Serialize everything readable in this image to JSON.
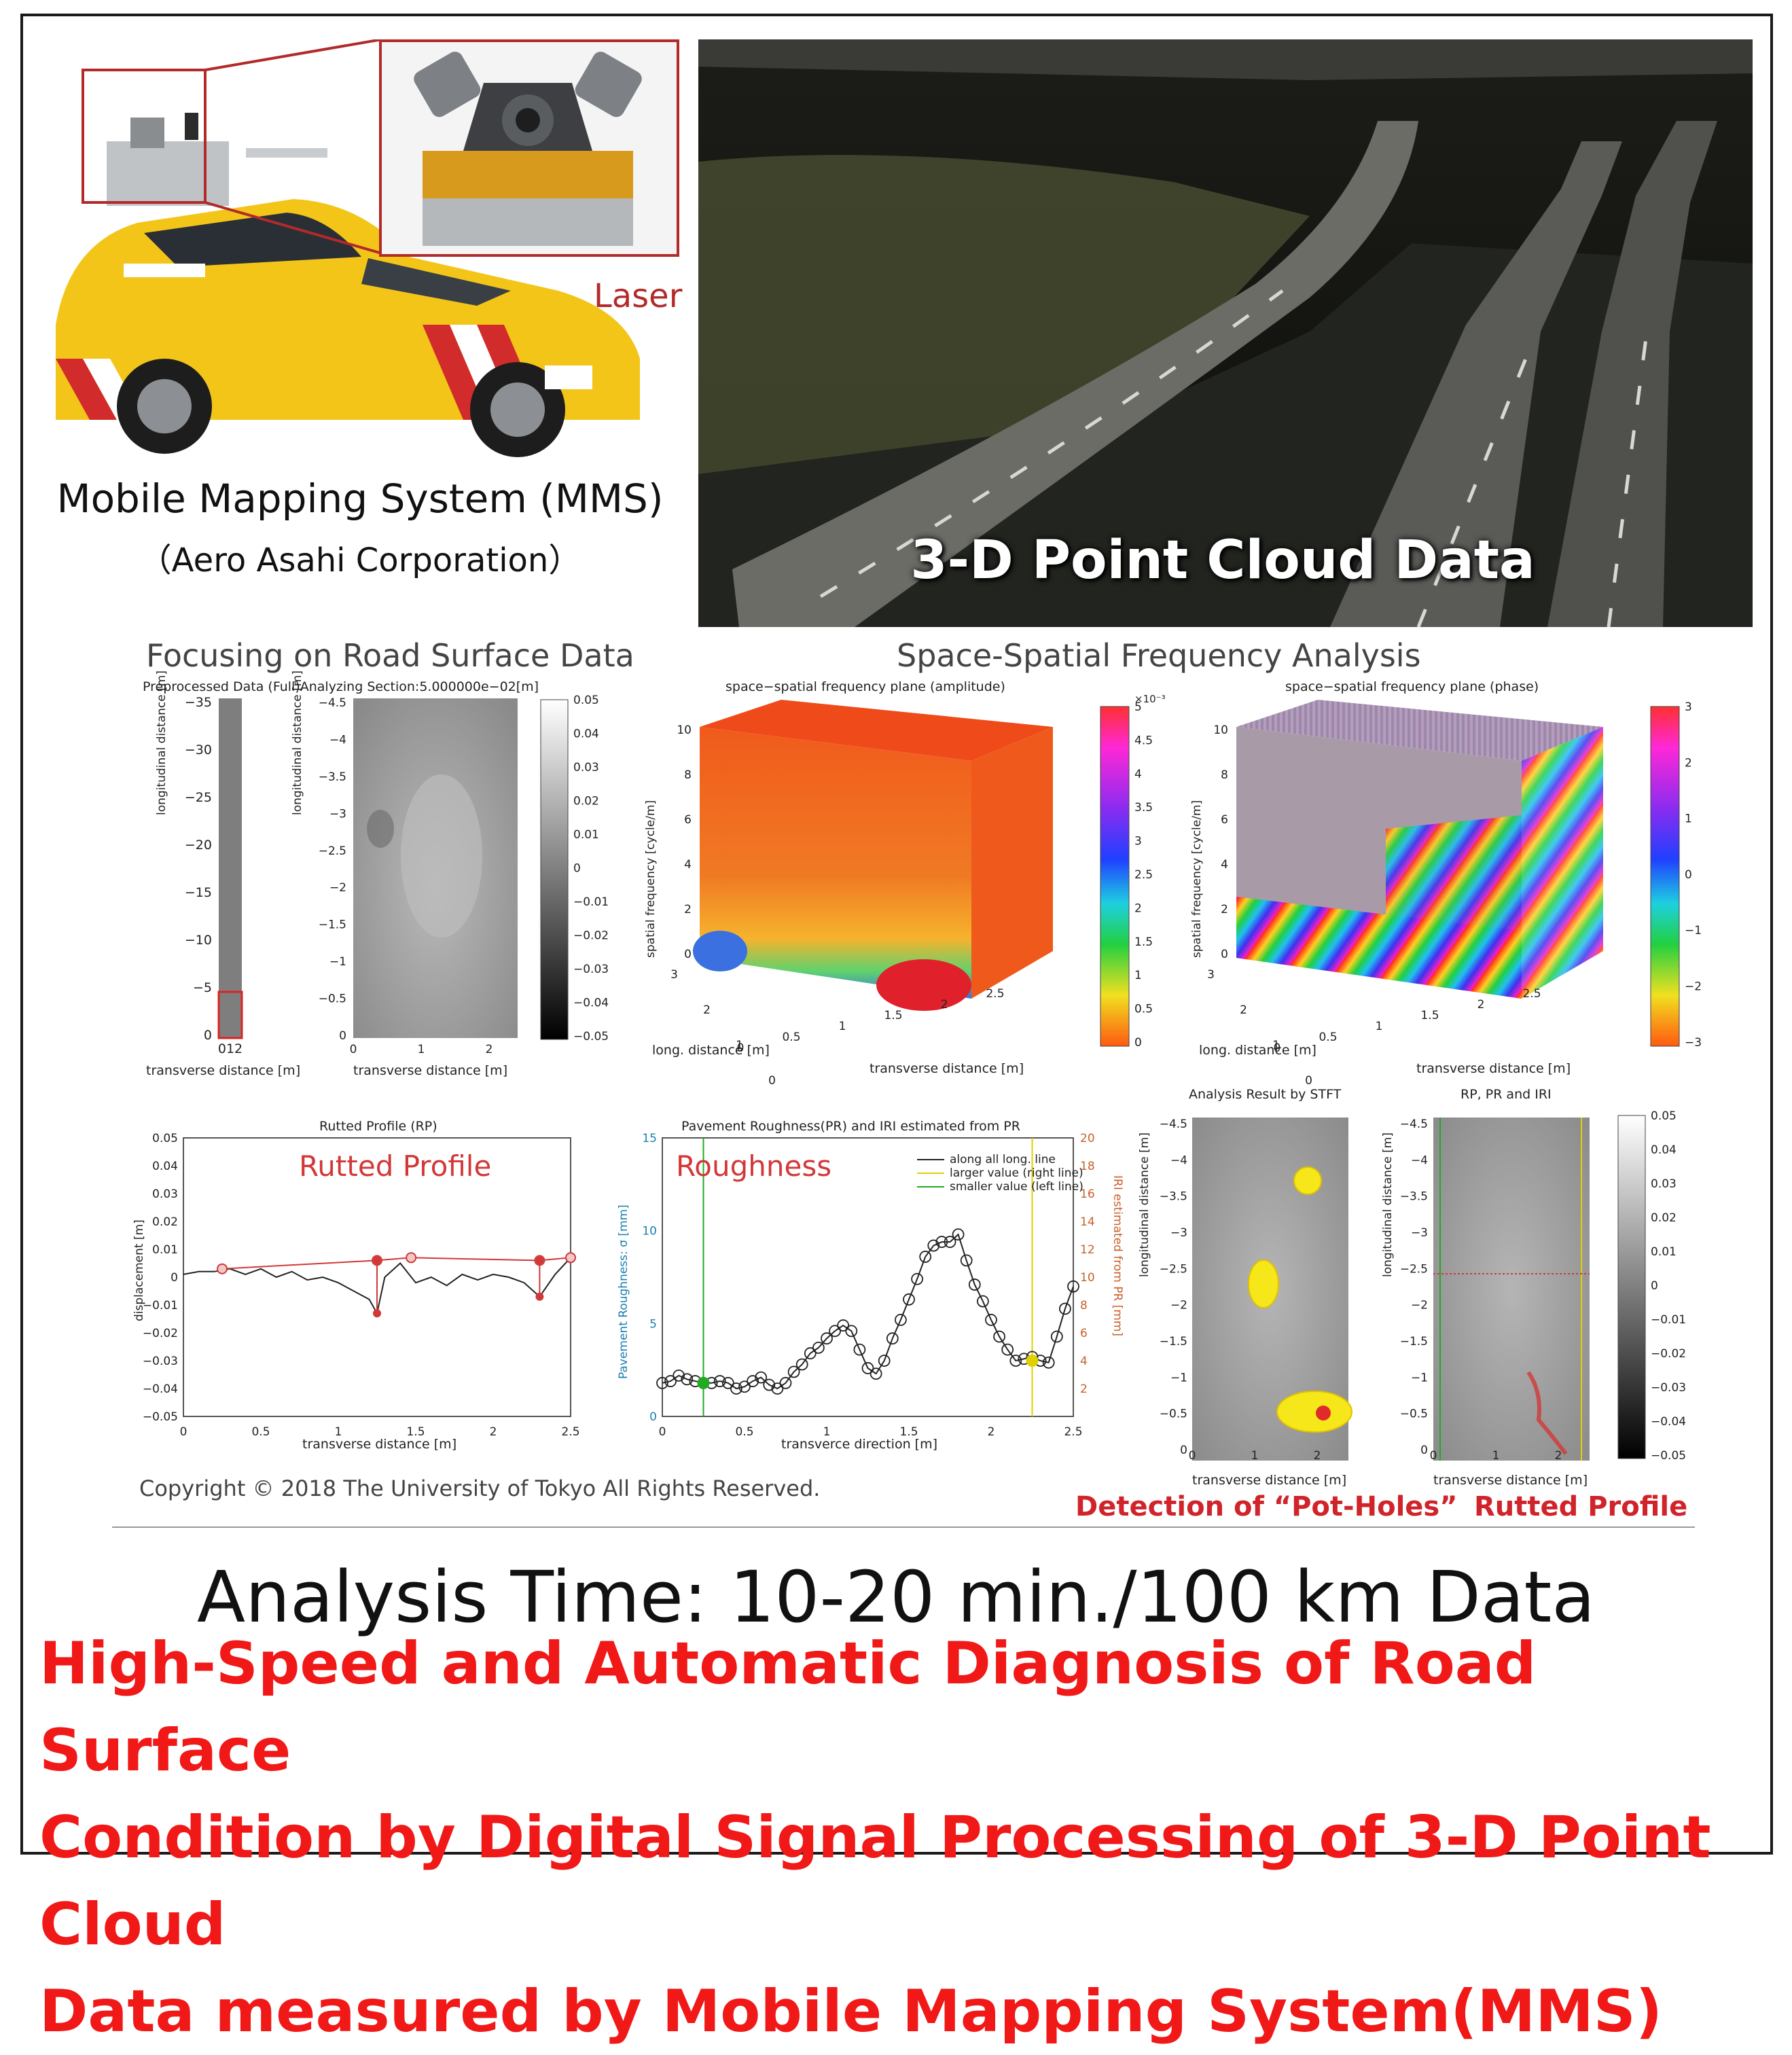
{
  "top": {
    "laser_label": "Laser",
    "mms_caption": "Mobile Mapping System (MMS)",
    "mms_company": "（Aero Asahi Corporation）",
    "point_cloud_title": "3-D Point Cloud Data"
  },
  "panel": {
    "left_section_title": "Focusing on Road Surface Data",
    "right_section_title": "Space-Spatial Frequency Analysis",
    "preprocessed_title": "Preprocessed Data (Full)Analyzing Section:5.000000e−02[m]",
    "amplitude_title": "space−spatial frequency plane (amplitude)",
    "phase_title": "space−spatial frequency plane (phase)",
    "longitudinal_axis": "longitudinal distance [m]",
    "transverse_axis": "transverse distance [m]",
    "spatial_freq_axis": "spatial frequency [cycle/m]",
    "long_distance_axis": "long. distance [m]",
    "full_y_ticks": [
      "−35",
      "−30",
      "−25",
      "−20",
      "−15",
      "−10",
      "−5",
      "0"
    ],
    "full_x_ticks": "012",
    "section_y_ticks": [
      "−4.5",
      "−4",
      "−3.5",
      "−3",
      "−2.5",
      "−2",
      "−1.5",
      "−1",
      "−0.5",
      "0"
    ],
    "section_x_ticks": [
      "0",
      "1",
      "2"
    ],
    "gray_colorbar_ticks": [
      "0.05",
      "0.04",
      "0.03",
      "0.02",
      "0.01",
      "0",
      "−0.01",
      "−0.02",
      "−0.03",
      "−0.04",
      "−0.05"
    ],
    "amp_colorbar_exp": "×10⁻³",
    "amp_colorbar_ticks": [
      "5",
      "4.5",
      "4",
      "3.5",
      "3",
      "2.5",
      "2",
      "1.5",
      "1",
      "0.5",
      "0"
    ],
    "phase_colorbar_ticks": [
      "3",
      "2",
      "1",
      "0",
      "−1",
      "−2",
      "−3"
    ],
    "cube_z_ticks": [
      "10",
      "8",
      "6",
      "4",
      "2",
      "0"
    ],
    "cube_long_ticks": [
      "3",
      "2",
      "1",
      "0"
    ],
    "cube_trans_ticks": [
      "0",
      "0.5",
      "1",
      "1.5",
      "2",
      "2.5"
    ],
    "rutted_title": "Rutted Profile (RP)",
    "rutted_label": "Rutted Profile",
    "displacement_axis": "displacement [m]",
    "roughness_title": "Pavement Roughness(PR) and IRI estimated from PR",
    "roughness_label": "Roughness",
    "pr_axis": "Pavement Roughness: σ [mm]",
    "iri_axis": "IRI estimated from PR [mm]",
    "transverce_axis": "transverce direction [m]",
    "legend": [
      "along all long. line",
      "larger value (right line)",
      "smaller value (left line)"
    ],
    "stft_title": "Analysis Result by STFT",
    "rp_pr_iri_title": "RP, PR and IRI",
    "copyright": "Copyright © 2018 The University of Tokyo All Rights Reserved.",
    "detection_potholes": "Detection of “Pot-Holes”",
    "detection_rutted": "Rutted Profile"
  },
  "analysis_time": "Analysis Time: 10-20 min./100 km Data",
  "headline": [
    "High-Speed and Automatic Diagnosis of Road Surface",
    "Condition by Digital  Signal Processing of 3-D Point Cloud",
    "Data measured by  Mobile Mapping System(MMS)"
  ],
  "chart_data": [
    {
      "type": "line",
      "title": "Rutted Profile (RP)",
      "xlabel": "transverse distance [m]",
      "ylabel": "displacement [m]",
      "xlim": [
        0,
        2.5
      ],
      "ylim": [
        -0.05,
        0.05
      ],
      "x_ticks": [
        "0",
        "0.5",
        "1",
        "1.5",
        "2",
        "2.5"
      ],
      "y_ticks": [
        "0.05",
        "0.04",
        "0.03",
        "0.02",
        "0.01",
        "0",
        "−0.01",
        "−0.02",
        "−0.03",
        "−0.04",
        "−0.05"
      ],
      "series": [
        {
          "color": "#222222",
          "x": [
            0,
            0.1,
            0.2,
            0.3,
            0.4,
            0.5,
            0.6,
            0.7,
            0.8,
            0.9,
            1.0,
            1.1,
            1.2,
            1.25,
            1.3,
            1.4,
            1.5,
            1.6,
            1.7,
            1.8,
            1.9,
            2.0,
            2.1,
            2.2,
            2.3,
            2.4,
            2.5
          ],
          "y": [
            0.001,
            0.002,
            0.002,
            0.003,
            0.001,
            0.003,
            0.0,
            0.002,
            -0.001,
            0.0,
            -0.002,
            -0.005,
            -0.008,
            -0.013,
            0.0,
            0.005,
            -0.002,
            0.0,
            -0.003,
            0.001,
            -0.001,
            0.001,
            0.0,
            -0.002,
            -0.007,
            0.001,
            0.007
          ]
        },
        {
          "color": "#d23838",
          "x": [
            0.25,
            1.25,
            1.47,
            2.3,
            2.5
          ],
          "y": [
            0.003,
            0.006,
            0.007,
            0.006,
            0.007
          ]
        }
      ]
    },
    {
      "type": "line",
      "title": "Pavement Roughness(PR) and IRI estimated from PR",
      "xlabel": "transverce direction [m]",
      "ylabel": "Pavement Roughness: σ [mm]",
      "xlim": [
        0,
        2.5
      ],
      "ylim": [
        0,
        15
      ],
      "x_ticks": [
        "0",
        "0.5",
        "1",
        "1.5",
        "2",
        "2.5"
      ],
      "y_ticks": [
        "15",
        "10",
        "5",
        "0"
      ],
      "y2_ticks": [
        "20",
        "18",
        "16",
        "14",
        "12",
        "10",
        "8",
        "6",
        "4",
        "2"
      ],
      "series": [
        {
          "name": "along all long. line",
          "x": [
            0,
            0.05,
            0.1,
            0.15,
            0.2,
            0.25,
            0.3,
            0.35,
            0.4,
            0.45,
            0.5,
            0.55,
            0.6,
            0.65,
            0.7,
            0.75,
            0.8,
            0.85,
            0.9,
            0.95,
            1.0,
            1.05,
            1.1,
            1.15,
            1.2,
            1.25,
            1.3,
            1.35,
            1.4,
            1.45,
            1.5,
            1.55,
            1.6,
            1.65,
            1.7,
            1.75,
            1.8,
            1.85,
            1.9,
            1.95,
            2.0,
            2.05,
            2.1,
            2.15,
            2.2,
            2.25,
            2.3,
            2.35,
            2.4,
            2.45,
            2.5
          ],
          "y": [
            1.8,
            1.9,
            2.2,
            2.0,
            1.9,
            1.8,
            1.8,
            1.9,
            1.8,
            1.5,
            1.6,
            1.9,
            2.1,
            1.7,
            1.5,
            1.8,
            2.4,
            2.8,
            3.4,
            3.7,
            4.2,
            4.6,
            4.9,
            4.6,
            3.6,
            2.6,
            2.3,
            3.0,
            4.2,
            5.2,
            6.3,
            7.4,
            8.6,
            9.2,
            9.4,
            9.4,
            9.8,
            8.4,
            7.1,
            6.2,
            5.2,
            4.3,
            3.6,
            3.0,
            3.1,
            3.2,
            3.0,
            2.9,
            4.3,
            5.8,
            7.0
          ]
        },
        {
          "name": "larger value (right line)",
          "x": [
            2.25
          ],
          "y": [
            3.0
          ]
        },
        {
          "name": "smaller value (left line)",
          "x": [
            0.25
          ],
          "y": [
            1.8
          ]
        }
      ]
    }
  ],
  "colors": {
    "headline_red": "#f11818",
    "laser_red": "#b22a2a",
    "label_red": "#d23838",
    "rutted_line": "#d23838",
    "left_line": "#22aa22",
    "right_line": "#e0d000",
    "pothole_yellow": "#f6e71a"
  }
}
